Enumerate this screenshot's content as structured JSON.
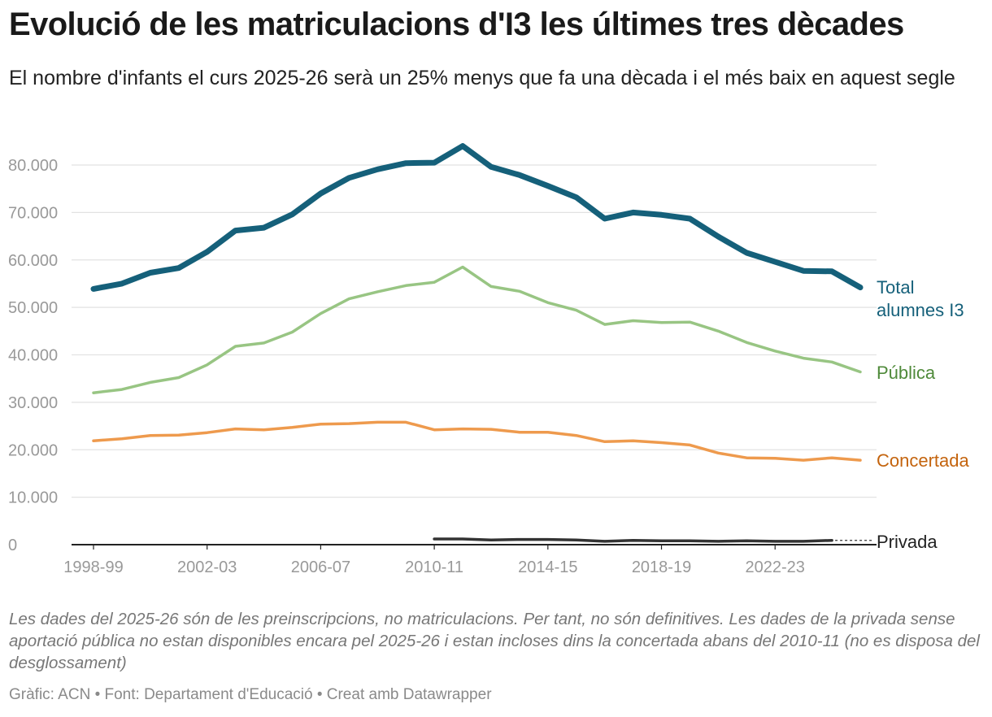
{
  "header": {
    "title": "Evolució de les matriculacions d'I3 les últimes tres dècades",
    "subtitle": "El nombre d'infants el curs 2025-26 serà un 25% menys que fa una dècada i el més baix en aquest segle"
  },
  "notes": "Les dades del 2025-26 són de les preinscripcions, no matriculacions. Per tant, no són definitives. Les dades de la privada sense aportació pública no estan disponibles encara pel 2025-26 i estan incloses dins la concertada abans del 2010-11 (no es disposa del desglossament)",
  "footer": "Gràfic: ACN • Font: Departament d'Educació • Creat amb Datawrapper",
  "chart_data": {
    "type": "line",
    "x": [
      "1998-99",
      "1999-00",
      "2000-01",
      "2001-02",
      "2002-03",
      "2003-04",
      "2004-05",
      "2005-06",
      "2006-07",
      "2007-08",
      "2008-09",
      "2009-10",
      "2010-11",
      "2011-12",
      "2012-13",
      "2013-14",
      "2014-15",
      "2015-16",
      "2016-17",
      "2017-18",
      "2018-19",
      "2019-20",
      "2020-21",
      "2021-22",
      "2022-23",
      "2023-24",
      "2024-25",
      "2025-26"
    ],
    "x_tick_labels": [
      "1998-99",
      "2002-03",
      "2006-07",
      "2010-11",
      "2014-15",
      "2018-19",
      "2022-23"
    ],
    "ylim": [
      0,
      80000
    ],
    "y_ticks": [
      0,
      10000,
      20000,
      30000,
      40000,
      50000,
      60000,
      70000,
      80000
    ],
    "y_tick_labels": [
      "0",
      "10.000",
      "20.000",
      "30.000",
      "40.000",
      "50.000",
      "60.000",
      "70.000",
      "80.000"
    ],
    "grid": true,
    "series": [
      {
        "name": "Total alumnes I3",
        "label_lines": [
          "Total",
          "alumnes I3"
        ],
        "color": "#15607a",
        "label_color": "#15607a",
        "values": [
          53900,
          55000,
          57300,
          58300,
          61700,
          66200,
          66800,
          69600,
          74000,
          77300,
          79100,
          80400,
          80500,
          84000,
          79600,
          77900,
          75600,
          73200,
          68700,
          70000,
          69500,
          68700,
          64900,
          61500,
          59600,
          57700,
          57600,
          54200
        ]
      },
      {
        "name": "Pública",
        "label_lines": [
          "Pública"
        ],
        "color": "#98c583",
        "label_color": "#4f8a3a",
        "values": [
          32000,
          32700,
          34200,
          35200,
          37900,
          41800,
          42500,
          44800,
          48700,
          51800,
          53300,
          54600,
          55300,
          58500,
          54400,
          53400,
          51000,
          49400,
          46400,
          47200,
          46800,
          46900,
          45000,
          42600,
          40800,
          39300,
          38500,
          36400
        ]
      },
      {
        "name": "Concertada",
        "label_lines": [
          "Concertada"
        ],
        "color": "#ee9a4d",
        "label_color": "#c4640e",
        "values": [
          21900,
          22300,
          23000,
          23100,
          23600,
          24400,
          24200,
          24700,
          25400,
          25500,
          25800,
          25800,
          24200,
          24400,
          24300,
          23700,
          23700,
          23000,
          21700,
          21900,
          21500,
          21000,
          19300,
          18300,
          18200,
          17800,
          18300,
          17800
        ]
      },
      {
        "name": "Privada",
        "label_lines": [
          "Privada"
        ],
        "color": "#333333",
        "label_color": "#222222",
        "values": [
          null,
          null,
          null,
          null,
          null,
          null,
          null,
          null,
          null,
          null,
          null,
          null,
          1200,
          1200,
          1000,
          1100,
          1100,
          1000,
          700,
          900,
          800,
          800,
          700,
          800,
          700,
          700,
          900,
          null
        ]
      }
    ]
  }
}
